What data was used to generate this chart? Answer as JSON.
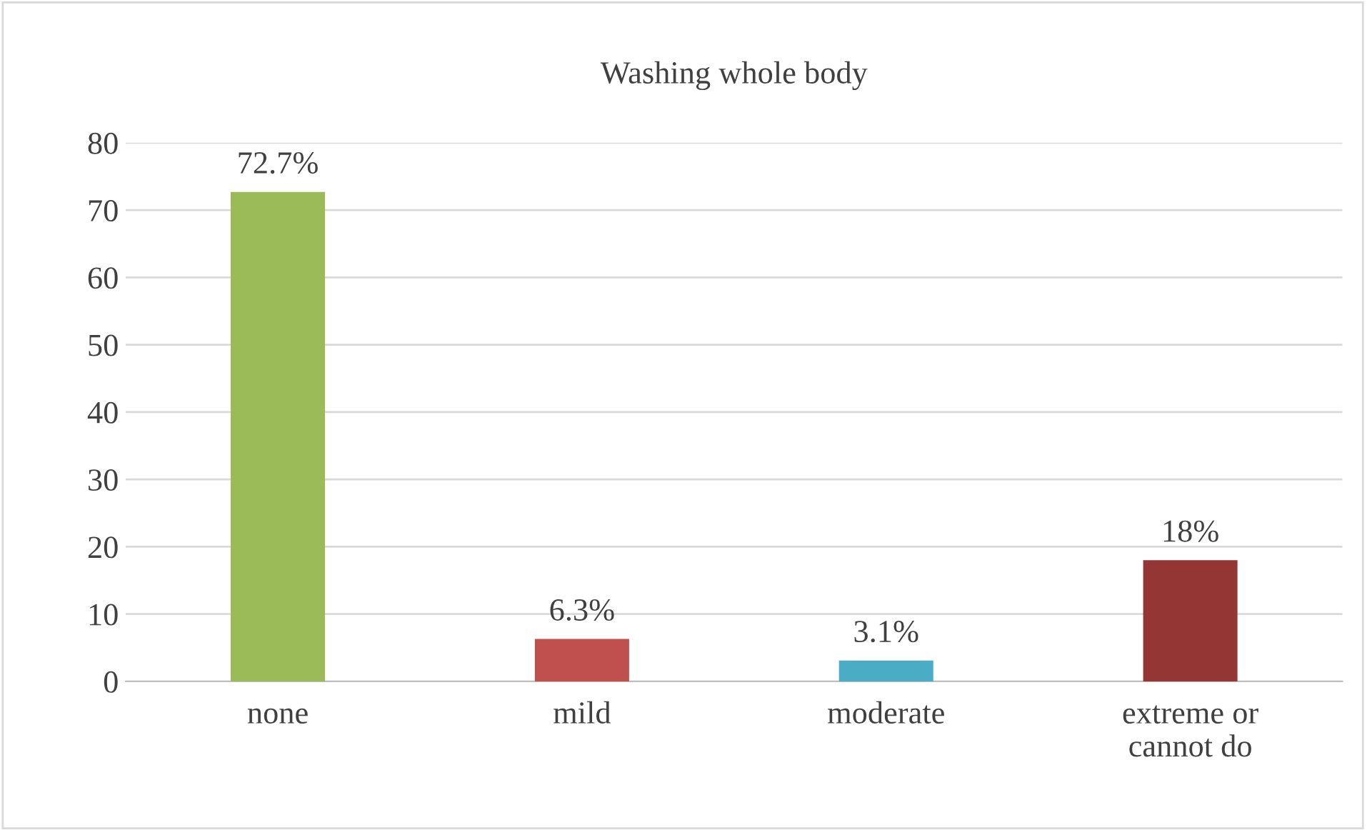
{
  "chart_data": {
    "type": "bar",
    "title": "Washing whole body",
    "categories": [
      "none",
      "mild",
      "moderate",
      "extreme or\ncannot do"
    ],
    "values": [
      72.7,
      6.3,
      3.1,
      18
    ],
    "colors": [
      "#9bbb59",
      "#c0504d",
      "#4bacc6",
      "#943634"
    ],
    "value_labels": [
      "72.7%",
      "6.3%",
      "3.1%",
      "18%"
    ],
    "ylim": [
      0,
      80
    ],
    "yticks": [
      0,
      10,
      20,
      30,
      40,
      50,
      60,
      70,
      80
    ],
    "grid": "y",
    "legend": false
  }
}
